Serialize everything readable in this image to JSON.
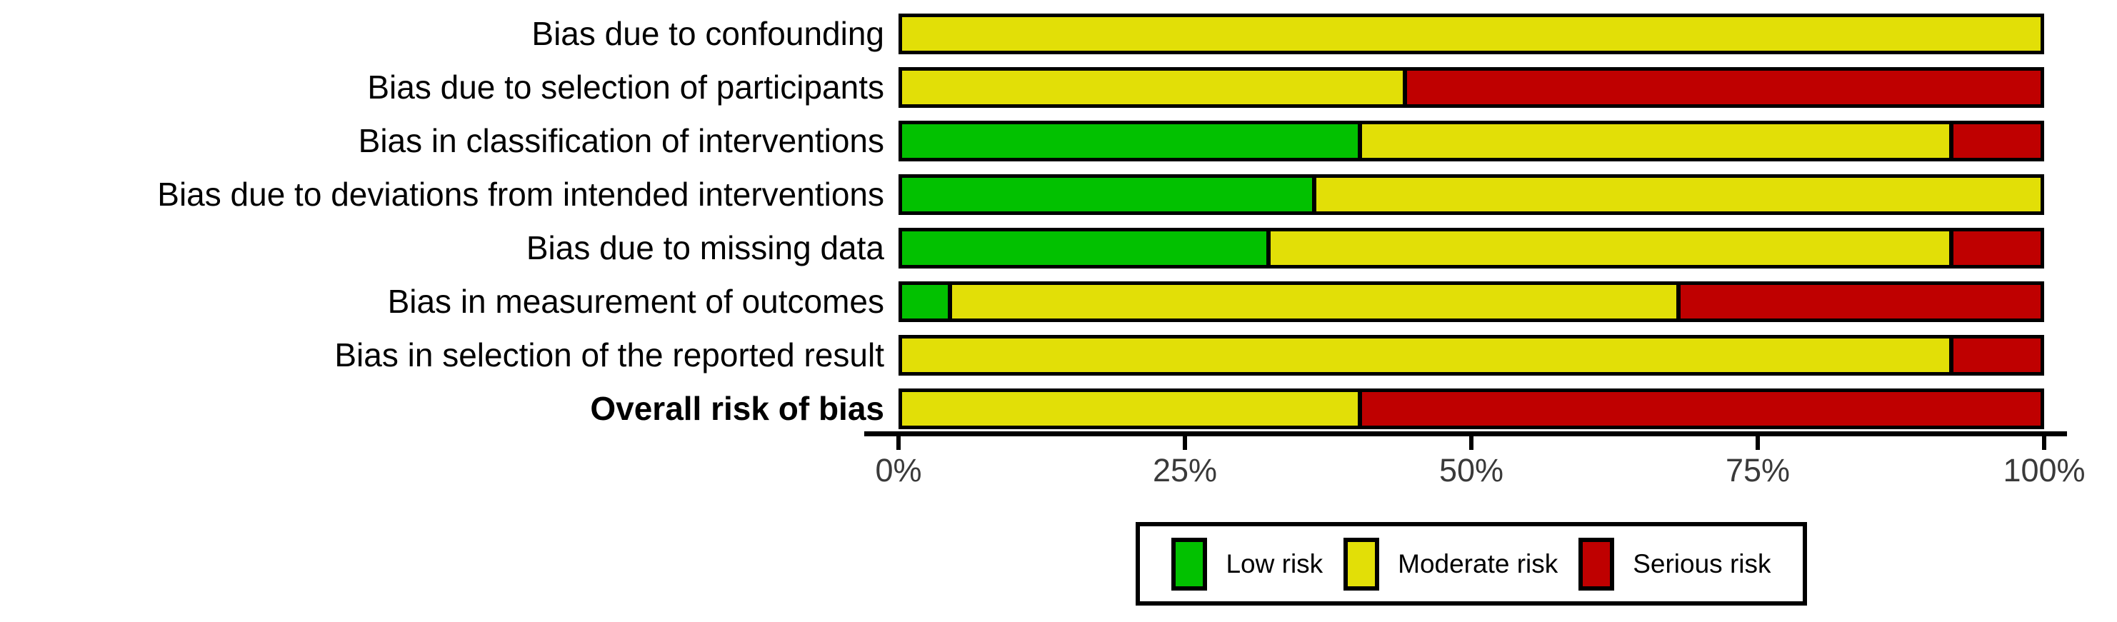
{
  "chart_data": {
    "type": "bar",
    "orientation": "horizontal_stacked",
    "title": "",
    "xlabel": "",
    "ylabel": "",
    "xlim": [
      0,
      100
    ],
    "grid": false,
    "categories": [
      "Bias due to confounding",
      "Bias due to selection of participants",
      "Bias in classification of interventions",
      "Bias due to deviations from intended interventions",
      "Bias due to missing data",
      "Bias in measurement of outcomes",
      "Bias in selection of the reported result",
      "Overall risk of bias"
    ],
    "bold_category_index": 7,
    "series": [
      {
        "name": "Low risk",
        "color": "#02C100",
        "values": [
          0,
          0,
          40,
          36,
          32,
          4,
          0,
          0
        ]
      },
      {
        "name": "Moderate risk",
        "color": "#E2DF07",
        "values": [
          100,
          44,
          52,
          64,
          60,
          64,
          92,
          40
        ]
      },
      {
        "name": "Serious risk",
        "color": "#BF0000",
        "values": [
          0,
          56,
          8,
          0,
          8,
          32,
          8,
          60
        ]
      }
    ],
    "x_ticks": [
      {
        "value": 0,
        "label": "0%"
      },
      {
        "value": 25,
        "label": "25%"
      },
      {
        "value": 50,
        "label": "50%"
      },
      {
        "value": 75,
        "label": "75%"
      },
      {
        "value": 100,
        "label": "100%"
      }
    ],
    "legend": {
      "position": "bottom",
      "entries": [
        {
          "label": "Low risk",
          "color": "#02C100"
        },
        {
          "label": "Moderate risk",
          "color": "#E2DF07"
        },
        {
          "label": "Serious risk",
          "color": "#BF0000"
        }
      ]
    },
    "colors": {
      "axis": "#000000",
      "tick_text": "#3a3a3a",
      "bar_border": "#000000",
      "background": "#ffffff"
    }
  }
}
